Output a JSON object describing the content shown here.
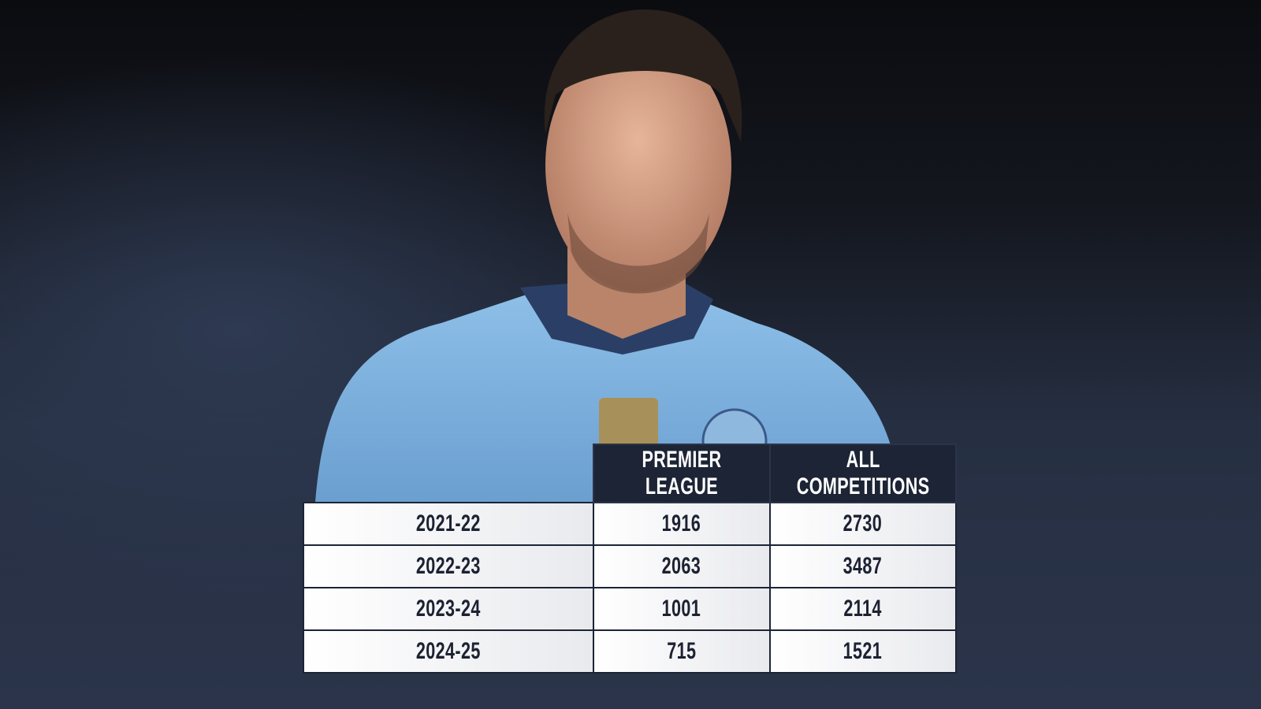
{
  "table": {
    "columns": [
      "PREMIER LEAGUE",
      "ALL COMPETITIONS"
    ],
    "rows": [
      [
        "2021-22",
        1916,
        2730
      ],
      [
        "2022-23",
        2063,
        3487
      ],
      [
        "2023-24",
        1001,
        2114
      ],
      [
        "2024-25",
        715,
        1521
      ]
    ]
  }
}
